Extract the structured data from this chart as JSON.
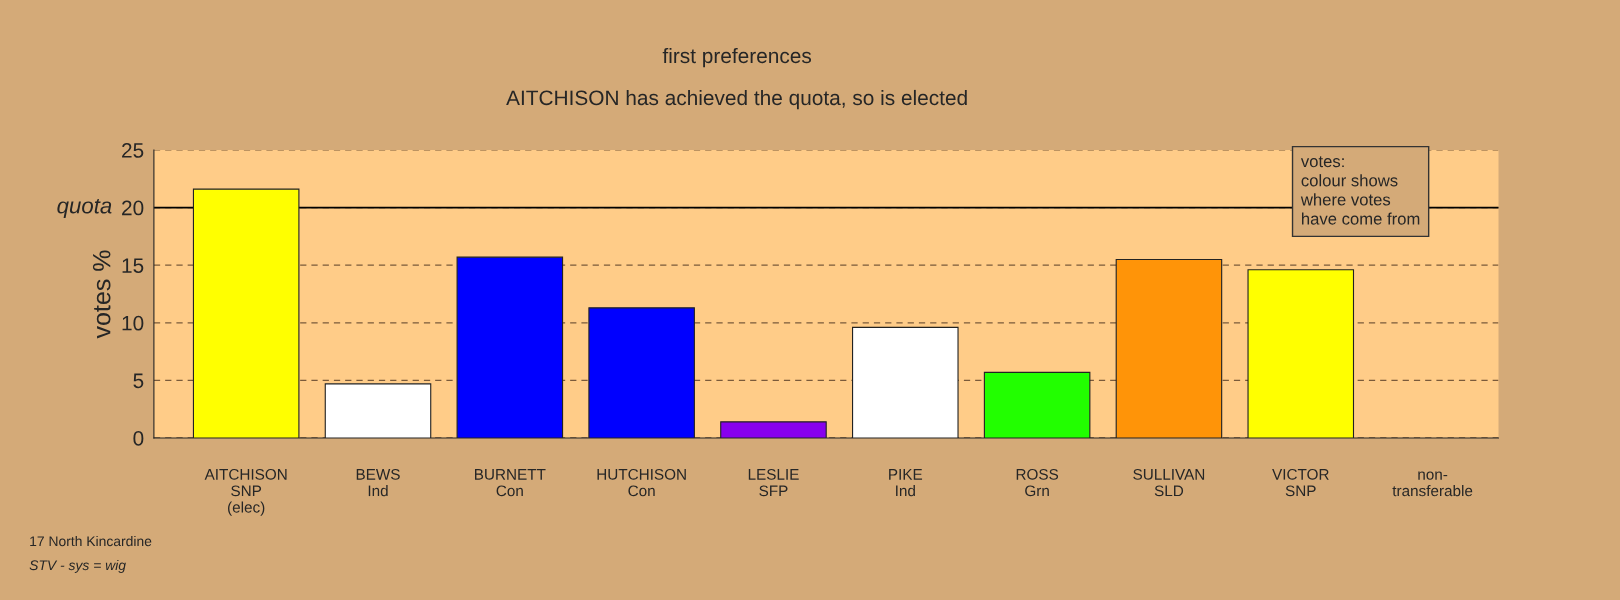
{
  "chart_data": {
    "type": "bar",
    "title": "first preferences",
    "subtitle": "AITCHISON has achieved the quota, so is elected",
    "ylabel": "votes %",
    "categories": [
      "AITCHISON\nSNP\n(elec)",
      "BEWS\nInd",
      "BURNETT\nCon",
      "HUTCHISON\nCon",
      "LESLIE\nSFP",
      "PIKE\nInd",
      "ROSS\nGrn",
      "SULLIVAN\nSLD",
      "VICTOR\nSNP",
      "non-\ntransferable"
    ],
    "values": [
      21.6,
      4.7,
      15.7,
      11.3,
      1.4,
      9.6,
      5.7,
      15.5,
      14.6,
      null
    ],
    "colors": [
      "#ffff00",
      "#ffffff",
      "#0000ff",
      "#0000ff",
      "#8800ee",
      "#ffffff",
      "#22ff00",
      "#ff9408",
      "#ffff00",
      null
    ],
    "ylim": [
      0,
      25
    ],
    "yticks": [
      0,
      5,
      10,
      15,
      20,
      25
    ],
    "grid": "y",
    "ref_lines": [
      {
        "axis": "y",
        "value": 20,
        "label": "quota",
        "color": "#000000",
        "line_style": "solid"
      }
    ],
    "annotations": [
      "votes:\ncolour shows\nwhere votes\nhave come from",
      "17 North Kincardine",
      "STV - sys = wig"
    ]
  }
}
